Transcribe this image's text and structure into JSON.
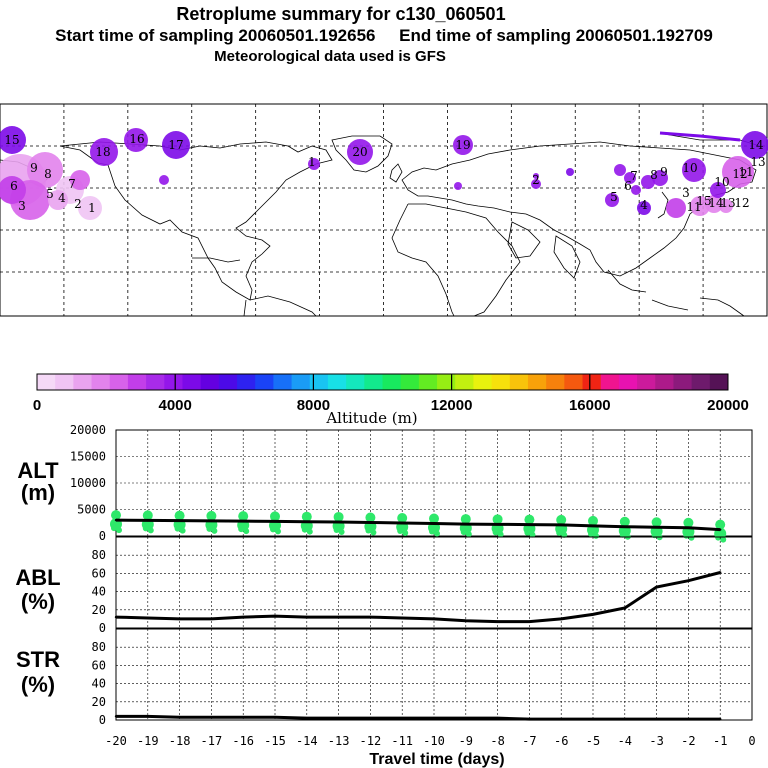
{
  "header": {
    "title": "Retroplume summary for c130_060501",
    "subtitle": "Start time of sampling 20060501.192656     End time of sampling 20060501.192709",
    "subtitle2": "Meteorological data used is GFS"
  },
  "colorbar": {
    "label": "Altitude (m)",
    "ticks": [
      "0",
      "4000",
      "8000",
      "12000",
      "16000",
      "20000"
    ],
    "colors": [
      "#f5d9f7",
      "#f0c4f4",
      "#e9a3ef",
      "#e283ec",
      "#d762ea",
      "#c23ee9",
      "#a82be9",
      "#9416ea",
      "#7c0ae8",
      "#6400e0",
      "#4c0ae8",
      "#2e22f0",
      "#1a43f6",
      "#1770f8",
      "#1a9cf6",
      "#19c4f2",
      "#18e0e6",
      "#14e8bd",
      "#12ea8d",
      "#18ea5f",
      "#34ea3b",
      "#63ec22",
      "#96ee14",
      "#c2f010",
      "#e8f20e",
      "#f7e10c",
      "#f8c30b",
      "#f8a20a",
      "#f7810c",
      "#f5590f",
      "#f02414",
      "#f0148f",
      "#e812b0",
      "#cc1a9c",
      "#ad1a8a",
      "#8c1a7c",
      "#6e1a6c",
      "#551256"
    ]
  },
  "map": {
    "labels": [
      {
        "t": "15"
      },
      {
        "t": "18"
      },
      {
        "t": "16"
      },
      {
        "t": "17"
      },
      {
        "t": "20"
      },
      {
        "t": "19"
      },
      {
        "t": "14"
      },
      {
        "t": "13"
      },
      {
        "t": "12"
      },
      {
        "t": "10"
      },
      {
        "t": "11"
      },
      {
        "t": "9"
      },
      {
        "t": "8"
      },
      {
        "t": "7"
      },
      {
        "t": "6"
      },
      {
        "t": "5"
      },
      {
        "t": "4"
      },
      {
        "t": "3"
      },
      {
        "t": "2"
      },
      {
        "t": "1"
      },
      {
        "t": "15"
      },
      {
        "t": "14"
      },
      {
        "t": "13"
      },
      {
        "t": "12"
      },
      {
        "t": "11"
      },
      {
        "t": "10"
      },
      {
        "t": "9"
      },
      {
        "t": "8"
      },
      {
        "t": "7"
      },
      {
        "t": "6"
      },
      {
        "t": "5"
      },
      {
        "t": "4"
      },
      {
        "t": "3"
      },
      {
        "t": "2"
      },
      {
        "t": "1"
      }
    ]
  },
  "chart_data": [
    {
      "type": "line",
      "panel": "ALT",
      "ylabel": "ALT\n(m)",
      "ylabel_lines": [
        "ALT",
        "(m)"
      ],
      "ylim": [
        0,
        20000
      ],
      "yticks": [
        0,
        5000,
        10000,
        15000,
        20000
      ],
      "xlim": [
        -20,
        0
      ],
      "x": [
        -20,
        -19,
        -18,
        -17,
        -16,
        -15,
        -14,
        -13,
        -12,
        -11,
        -10,
        -9,
        -8,
        -7,
        -6,
        -5,
        -4,
        -3,
        -2,
        -1
      ],
      "values": [
        3000,
        2950,
        2900,
        2850,
        2800,
        2750,
        2700,
        2650,
        2550,
        2450,
        2350,
        2250,
        2200,
        2150,
        2100,
        1900,
        1750,
        1650,
        1550,
        1200
      ],
      "scatter_note": "green dots show plume spread around the mean altitude"
    },
    {
      "type": "line",
      "panel": "ABL",
      "ylabel_lines": [
        "ABL",
        "(%)"
      ],
      "ylim": [
        0,
        100
      ],
      "yticks": [
        0,
        20,
        40,
        60,
        80
      ],
      "xlim": [
        -20,
        0
      ],
      "x": [
        -20,
        -19,
        -18,
        -17,
        -16,
        -15,
        -14,
        -13,
        -12,
        -11,
        -10,
        -9,
        -8,
        -7,
        -6,
        -5,
        -4,
        -3,
        -2,
        -1
      ],
      "values": [
        12,
        11,
        10,
        10,
        12,
        13,
        12,
        12,
        12,
        11,
        10,
        8,
        7,
        7,
        10,
        15,
        22,
        45,
        52,
        61
      ]
    },
    {
      "type": "line",
      "panel": "STR",
      "ylabel_lines": [
        "STR",
        "(%)"
      ],
      "ylim": [
        0,
        100
      ],
      "yticks": [
        0,
        20,
        40,
        60,
        80
      ],
      "xlim": [
        -20,
        0
      ],
      "x": [
        -20,
        -19,
        -18,
        -17,
        -16,
        -15,
        -14,
        -13,
        -12,
        -11,
        -10,
        -9,
        -8,
        -7,
        -6,
        -5,
        -4,
        -3,
        -2,
        -1
      ],
      "values": [
        4,
        4,
        3,
        3,
        3,
        3,
        2,
        2,
        2,
        2,
        2,
        2,
        2,
        1,
        1,
        1,
        1,
        1,
        1,
        1
      ]
    }
  ],
  "xaxis": {
    "ticks": [
      "-20",
      "-19",
      "-18",
      "-17",
      "-16",
      "-15",
      "-14",
      "-13",
      "-12",
      "-11",
      "-10",
      "-9",
      "-8",
      "-7",
      "-6",
      "-5",
      "-4",
      "-3",
      "-2",
      "-1",
      "0"
    ],
    "label": "Travel time (days)"
  }
}
